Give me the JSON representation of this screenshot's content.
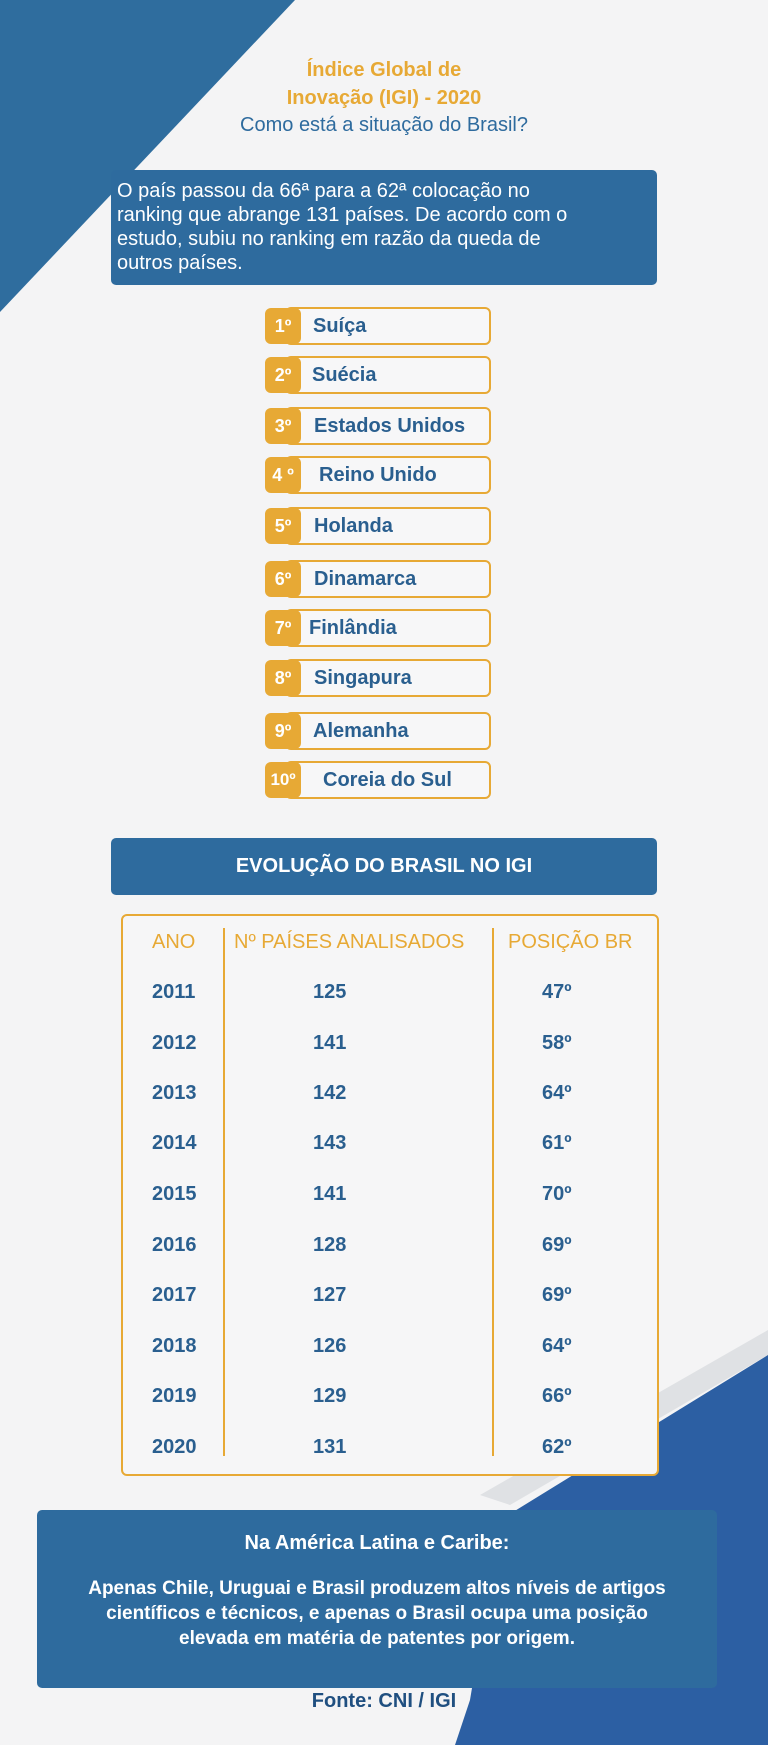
{
  "colors": {
    "primary_blue": "#2e6b9e",
    "dark_blue": "#1f4f80",
    "accent_gold": "#e7a935",
    "background": "#f4f4f5"
  },
  "header": {
    "title_line1": "Índice Global de",
    "title_line2": "Inovação (IGI) -  2020",
    "subtitle": "Como está a situação do Brasil?"
  },
  "intro": {
    "lines": [
      "O país passou da 66ª para a 62ª colocação no",
      "ranking que abrange 131 países. De acordo com o",
      "estudo, subiu no ranking em razão da queda de",
      "outros países."
    ]
  },
  "ranking": [
    {
      "pos": "1º",
      "country": "Suíça"
    },
    {
      "pos": "2º",
      "country": "Suécia"
    },
    {
      "pos": "3º",
      "country": "Estados Unidos"
    },
    {
      "pos": "4 º",
      "country": "Reino Unido"
    },
    {
      "pos": "5º",
      "country": "Holanda"
    },
    {
      "pos": "6º",
      "country": "Dinamarca"
    },
    {
      "pos": "7º",
      "country": "Finlândia"
    },
    {
      "pos": "8º",
      "country": "Singapura"
    },
    {
      "pos": "9º",
      "country": "Alemanha"
    },
    {
      "pos": "10º",
      "country": "Coreia do Sul"
    }
  ],
  "evolution": {
    "header": "EVOLUÇÃO DO BRASIL NO IGI",
    "columns": [
      "ANO",
      "Nº PAÍSES ANALISADOS",
      "POSIÇÃO BR"
    ],
    "rows": [
      {
        "year": "2011",
        "countries": "125",
        "position": "47º"
      },
      {
        "year": "2012",
        "countries": "141",
        "position": "58º"
      },
      {
        "year": "2013",
        "countries": "142",
        "position": "64º"
      },
      {
        "year": "2014",
        "countries": "143",
        "position": "61º"
      },
      {
        "year": "2015",
        "countries": "141",
        "position": "70º"
      },
      {
        "year": "2016",
        "countries": "128",
        "position": "69º"
      },
      {
        "year": "2017",
        "countries": "127",
        "position": "69º"
      },
      {
        "year": "2018",
        "countries": "126",
        "position": "64º"
      },
      {
        "year": "2019",
        "countries": "129",
        "position": "66º"
      },
      {
        "year": "2020",
        "countries": "131",
        "position": "62º"
      }
    ]
  },
  "footer": {
    "title": "Na América Latina e Caribe:",
    "lines": [
      "Apenas Chile, Uruguai e Brasil produzem altos níveis de artigos",
      "científicos e técnicos, e apenas o Brasil ocupa uma posição",
      "elevada em matéria de patentes por origem."
    ]
  },
  "source": "Fonte: CNI / IGI"
}
